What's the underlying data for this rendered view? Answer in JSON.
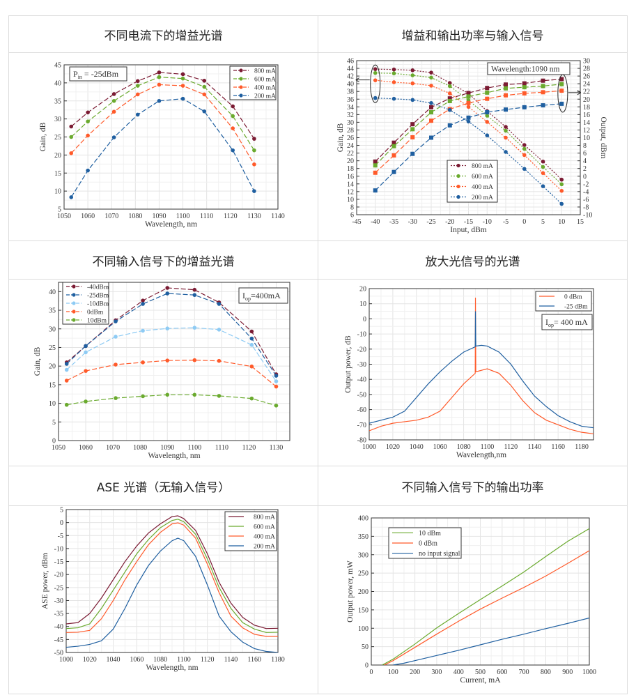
{
  "panels": [
    {
      "heading": "不同电流下的增益光谱"
    },
    {
      "heading": "增益和输出功率与输入信号"
    },
    {
      "heading": "不同输入信号下的增益光谱"
    },
    {
      "heading": "放大光信号的光谱"
    },
    {
      "heading": "ASE  光谱（无输入信号）"
    },
    {
      "heading": "不同输入信号下的输出功率"
    }
  ],
  "chart_data": [
    {
      "type": "line",
      "xlabel": "Wavelength, nm",
      "ylabel": "Gain, dB",
      "xlim": [
        1050,
        1140
      ],
      "ylim": [
        5,
        45
      ],
      "xticks": [
        1050,
        1060,
        1070,
        1080,
        1090,
        1100,
        1110,
        1120,
        1130,
        1140
      ],
      "yticks": [
        5,
        10,
        15,
        20,
        25,
        30,
        35,
        40,
        45
      ],
      "grid": true,
      "legend": "top-right",
      "line_style": "dashed",
      "marker": "circle",
      "annotation": {
        "main": "P",
        "sub": "in",
        "rest": " = -25dBm"
      },
      "x": [
        1053,
        1060,
        1071,
        1081,
        1090,
        1100,
        1109,
        1121,
        1130
      ],
      "series": [
        {
          "name": "800 mA",
          "color": "#7b1b33",
          "y": [
            27.9,
            31.8,
            36.9,
            40.5,
            42.9,
            42.4,
            40.6,
            33.5,
            24.5
          ]
        },
        {
          "name": "600 mA",
          "color": "#6aaa2e",
          "y": [
            25,
            29.3,
            35,
            39.2,
            41.6,
            41.2,
            38.9,
            30.8,
            21.3
          ]
        },
        {
          "name": "400 mA",
          "color": "#ff5a2a",
          "y": [
            20.5,
            25.4,
            32,
            36.8,
            39.5,
            39.2,
            36.8,
            27.4,
            17.4
          ]
        },
        {
          "name": "200 mA",
          "color": "#1f5fa0",
          "y": [
            8.3,
            15.7,
            24.9,
            31.2,
            35,
            35.6,
            32.1,
            21.3,
            10
          ]
        }
      ]
    },
    {
      "type": "line",
      "xlabel": "Input, dBm",
      "ylabel": "Gain, dB",
      "y2label": "Output, dBm",
      "xlim": [
        -45,
        15
      ],
      "ylim": [
        6,
        46
      ],
      "y2lim": [
        -10,
        30
      ],
      "xticks": [
        -45,
        -40,
        -35,
        -30,
        -25,
        -20,
        -15,
        -10,
        -5,
        0,
        5,
        10,
        15
      ],
      "yticks": [
        6,
        8,
        10,
        12,
        14,
        16,
        18,
        20,
        22,
        24,
        26,
        28,
        30,
        32,
        34,
        36,
        38,
        40,
        42,
        44,
        46
      ],
      "y2ticks": [
        -10,
        -8,
        -6,
        -4,
        -2,
        0,
        2,
        4,
        6,
        8,
        10,
        12,
        14,
        16,
        18,
        20,
        22,
        24,
        26,
        28,
        30
      ],
      "grid": true,
      "legend": "bottom-center",
      "annotation": {
        "main": "Wavelength:1090 nm",
        "sub": "",
        "rest": ""
      },
      "x": [
        -40,
        -35,
        -30,
        -25,
        -20,
        -15,
        -10,
        -5,
        0,
        5,
        10
      ],
      "series": [
        {
          "name": "800 mA",
          "color": "#7b1b33",
          "y": [
            43.8,
            43.7,
            43.5,
            42.9,
            40.2,
            37.5,
            32.9,
            28.8,
            24.1,
            19.8,
            15.1
          ],
          "y2": [
            3.8,
            8.7,
            13.5,
            17.9,
            20.2,
            21.6,
            22.9,
            23.8,
            24.1,
            24.8,
            25.2
          ]
        },
        {
          "name": "600 mA",
          "color": "#6aaa2e",
          "y": [
            42.8,
            42.7,
            42.2,
            41.6,
            39.4,
            35.7,
            31.7,
            27.8,
            23.1,
            18.4,
            13.9
          ],
          "y2": [
            2.8,
            7.8,
            12.2,
            16.6,
            19.5,
            20.7,
            21.7,
            22.8,
            23.1,
            23.4,
            23.9
          ]
        },
        {
          "name": "400 mA",
          "color": "#ff5a2a",
          "y": [
            40.9,
            40.4,
            40.1,
            39.5,
            37.5,
            34.0,
            30.1,
            26.0,
            21.5,
            16.8,
            12.2
          ],
          "y2": [
            0.9,
            5.4,
            10.1,
            14.4,
            17.4,
            19.0,
            20.1,
            21.0,
            21.5,
            21.8,
            22.2
          ]
        },
        {
          "name": "200 mA",
          "color": "#1f5fa0",
          "y": [
            36.3,
            36.1,
            35.8,
            35.0,
            33.2,
            30.2,
            26.6,
            22.3,
            17.9,
            13.4,
            8.8
          ],
          "y2": [
            -3.7,
            1.1,
            5.8,
            10.0,
            13.2,
            15.2,
            16.6,
            17.3,
            17.9,
            18.4,
            18.8
          ]
        }
      ]
    },
    {
      "type": "line",
      "xlabel": "Wavelength, nm",
      "ylabel": "Gain, dB",
      "xlim": [
        1050,
        1135
      ],
      "ylim": [
        0,
        42.5
      ],
      "xticks": [
        1050,
        1060,
        1070,
        1080,
        1090,
        1100,
        1110,
        1120,
        1130
      ],
      "yticks": [
        0,
        5,
        10,
        15,
        20,
        25,
        30,
        35,
        40
      ],
      "grid": true,
      "legend": "top-left",
      "line_style": "dashed",
      "marker": "circle",
      "annotation": {
        "main": "I",
        "sub": "op",
        "rest": "=400mA"
      },
      "x": [
        1053,
        1060,
        1071,
        1081,
        1090,
        1100,
        1109,
        1121,
        1130
      ],
      "series": [
        {
          "name": "-40dBm",
          "color": "#7b1b33",
          "y": [
            21,
            25.4,
            32.3,
            37.6,
            41,
            40.5,
            37.1,
            29.3,
            17.8
          ]
        },
        {
          "name": "-25dBm",
          "color": "#1f5fa0",
          "y": [
            20.6,
            25.4,
            32,
            36.7,
            39.5,
            39.1,
            36.7,
            27.4,
            17.4
          ]
        },
        {
          "name": "-10dBm",
          "color": "#8ecbf4",
          "y": [
            19,
            23.7,
            27.9,
            29.5,
            30.1,
            30.3,
            29.8,
            25.7,
            15.9
          ]
        },
        {
          "name": "0dBm",
          "color": "#ff5a2a",
          "y": [
            16.1,
            18.7,
            20.4,
            21,
            21.5,
            21.6,
            21.4,
            19.9,
            14.5
          ]
        },
        {
          "name": "10dBm",
          "color": "#6aaa2e",
          "y": [
            9.6,
            10.5,
            11.4,
            11.9,
            12.3,
            12.3,
            12,
            11.3,
            9.4
          ]
        }
      ]
    },
    {
      "type": "line",
      "xlabel": "Wavelength,nm",
      "ylabel": "Output power, dB",
      "xlim": [
        1000,
        1190
      ],
      "ylim": [
        -80,
        20
      ],
      "xticks": [
        1000,
        1020,
        1040,
        1060,
        1080,
        1100,
        1120,
        1140,
        1160,
        1180
      ],
      "yticks": [
        -80,
        -70,
        -60,
        -50,
        -40,
        -30,
        -20,
        -10,
        0,
        10,
        20
      ],
      "grid": true,
      "legend": "top-right",
      "line_style": "solid",
      "marker": "none",
      "annotation": {
        "main": "I",
        "sub": "op",
        "rest": "= 400 mA"
      },
      "series": [
        {
          "name": "0 dBm",
          "color": "#ff5a2a",
          "x": [
            1000,
            1010,
            1020,
            1030,
            1040,
            1050,
            1060,
            1070,
            1080,
            1089.8,
            1090,
            1090.3,
            1100,
            1110,
            1120,
            1130,
            1140,
            1150,
            1160,
            1170,
            1180,
            1190
          ],
          "y": [
            -74,
            -71,
            -69,
            -68,
            -67,
            -65,
            -61,
            -52,
            -43,
            -36,
            14,
            -35,
            -33,
            -36,
            -44,
            -54,
            -62,
            -67,
            -70,
            -73,
            -75,
            -76
          ]
        },
        {
          "name": "-25 dBm",
          "color": "#1f5fa0",
          "x": [
            1000,
            1010,
            1020,
            1030,
            1040,
            1050,
            1060,
            1070,
            1080,
            1089.8,
            1090,
            1090.3,
            1095,
            1100,
            1110,
            1120,
            1130,
            1140,
            1150,
            1160,
            1170,
            1180,
            1190
          ],
          "y": [
            -69,
            -67,
            -65,
            -61,
            -52,
            -43,
            -35,
            -28,
            -22,
            -18.5,
            5,
            -18,
            -17.5,
            -18,
            -22,
            -30,
            -41,
            -51,
            -58,
            -64,
            -68,
            -71,
            -72
          ]
        }
      ]
    },
    {
      "type": "line",
      "xlabel": "Wavelength, nm",
      "ylabel": "ASE power, dBm",
      "xlim": [
        1000,
        1180
      ],
      "ylim": [
        -50,
        5
      ],
      "xticks": [
        1000,
        1020,
        1040,
        1060,
        1080,
        1100,
        1120,
        1140,
        1160,
        1180
      ],
      "yticks": [
        -50,
        -45,
        -40,
        -35,
        -30,
        -25,
        -20,
        -15,
        -10,
        -5,
        0,
        5
      ],
      "grid": true,
      "legend": "top-right",
      "line_style": "solid",
      "marker": "none",
      "x": [
        1000,
        1010,
        1020,
        1030,
        1040,
        1050,
        1060,
        1070,
        1080,
        1090,
        1095,
        1100,
        1110,
        1120,
        1130,
        1140,
        1150,
        1160,
        1170,
        1180
      ],
      "series": [
        {
          "name": "800 mA",
          "color": "#7b1b33",
          "y": [
            -39,
            -38.5,
            -35,
            -29,
            -22,
            -15,
            -9,
            -4,
            -0.5,
            2.3,
            2.6,
            1.5,
            -3,
            -12,
            -23,
            -31,
            -36.5,
            -39.5,
            -40.8,
            -40.7
          ]
        },
        {
          "name": "600 mA",
          "color": "#6aaa2e",
          "y": [
            -40.8,
            -40.5,
            -39,
            -33,
            -26,
            -19,
            -12,
            -6.5,
            -2,
            0.8,
            1.3,
            0.3,
            -4.5,
            -14,
            -25,
            -33,
            -38.5,
            -41,
            -42.3,
            -42.2
          ]
        },
        {
          "name": "400 mA",
          "color": "#ff5a2a",
          "y": [
            -42.3,
            -42.2,
            -41.5,
            -37,
            -30,
            -22,
            -15,
            -8.5,
            -3.8,
            -0.5,
            -0.1,
            -1,
            -6,
            -16,
            -27,
            -36,
            -40.5,
            -43,
            -43.8,
            -43.8
          ]
        },
        {
          "name": "200 mA",
          "color": "#1f5fa0",
          "y": [
            -48,
            -47.6,
            -46.9,
            -45.5,
            -41,
            -33,
            -24,
            -16.5,
            -11,
            -7,
            -6,
            -7,
            -13,
            -24,
            -36,
            -42,
            -46,
            -48.5,
            -49.6,
            -50
          ]
        }
      ]
    },
    {
      "type": "line",
      "xlabel": "Current, mA",
      "ylabel": "Output power, mW",
      "xlim": [
        0,
        1000
      ],
      "ylim": [
        0,
        400
      ],
      "xticks": [
        0,
        100,
        200,
        300,
        400,
        500,
        600,
        700,
        800,
        900,
        1000
      ],
      "yticks": [
        0,
        50,
        100,
        150,
        200,
        250,
        300,
        350,
        400
      ],
      "grid": true,
      "legend": "top-left",
      "line_style": "solid",
      "marker": "none",
      "series": [
        {
          "name": "10 dBm",
          "color": "#6aaa2e",
          "x": [
            50,
            100,
            200,
            300,
            400,
            500,
            600,
            700,
            800,
            900,
            1000
          ],
          "y": [
            0,
            16,
            57,
            101,
            140,
            178,
            215,
            253,
            295,
            336,
            371
          ]
        },
        {
          "name": "0 dBm",
          "color": "#ff5a2a",
          "x": [
            60,
            100,
            200,
            300,
            400,
            500,
            600,
            700,
            800,
            900,
            1000
          ],
          "y": [
            0,
            12,
            48,
            84,
            119,
            152,
            182,
            211,
            242,
            276,
            311
          ]
        },
        {
          "name": "no input signal",
          "color": "#1f5fa0",
          "x": [
            100,
            150,
            200,
            300,
            400,
            500,
            600,
            700,
            800,
            900,
            1000
          ],
          "y": [
            0,
            5,
            12,
            26,
            40,
            55,
            70,
            84,
            99,
            113,
            128
          ]
        }
      ]
    }
  ]
}
